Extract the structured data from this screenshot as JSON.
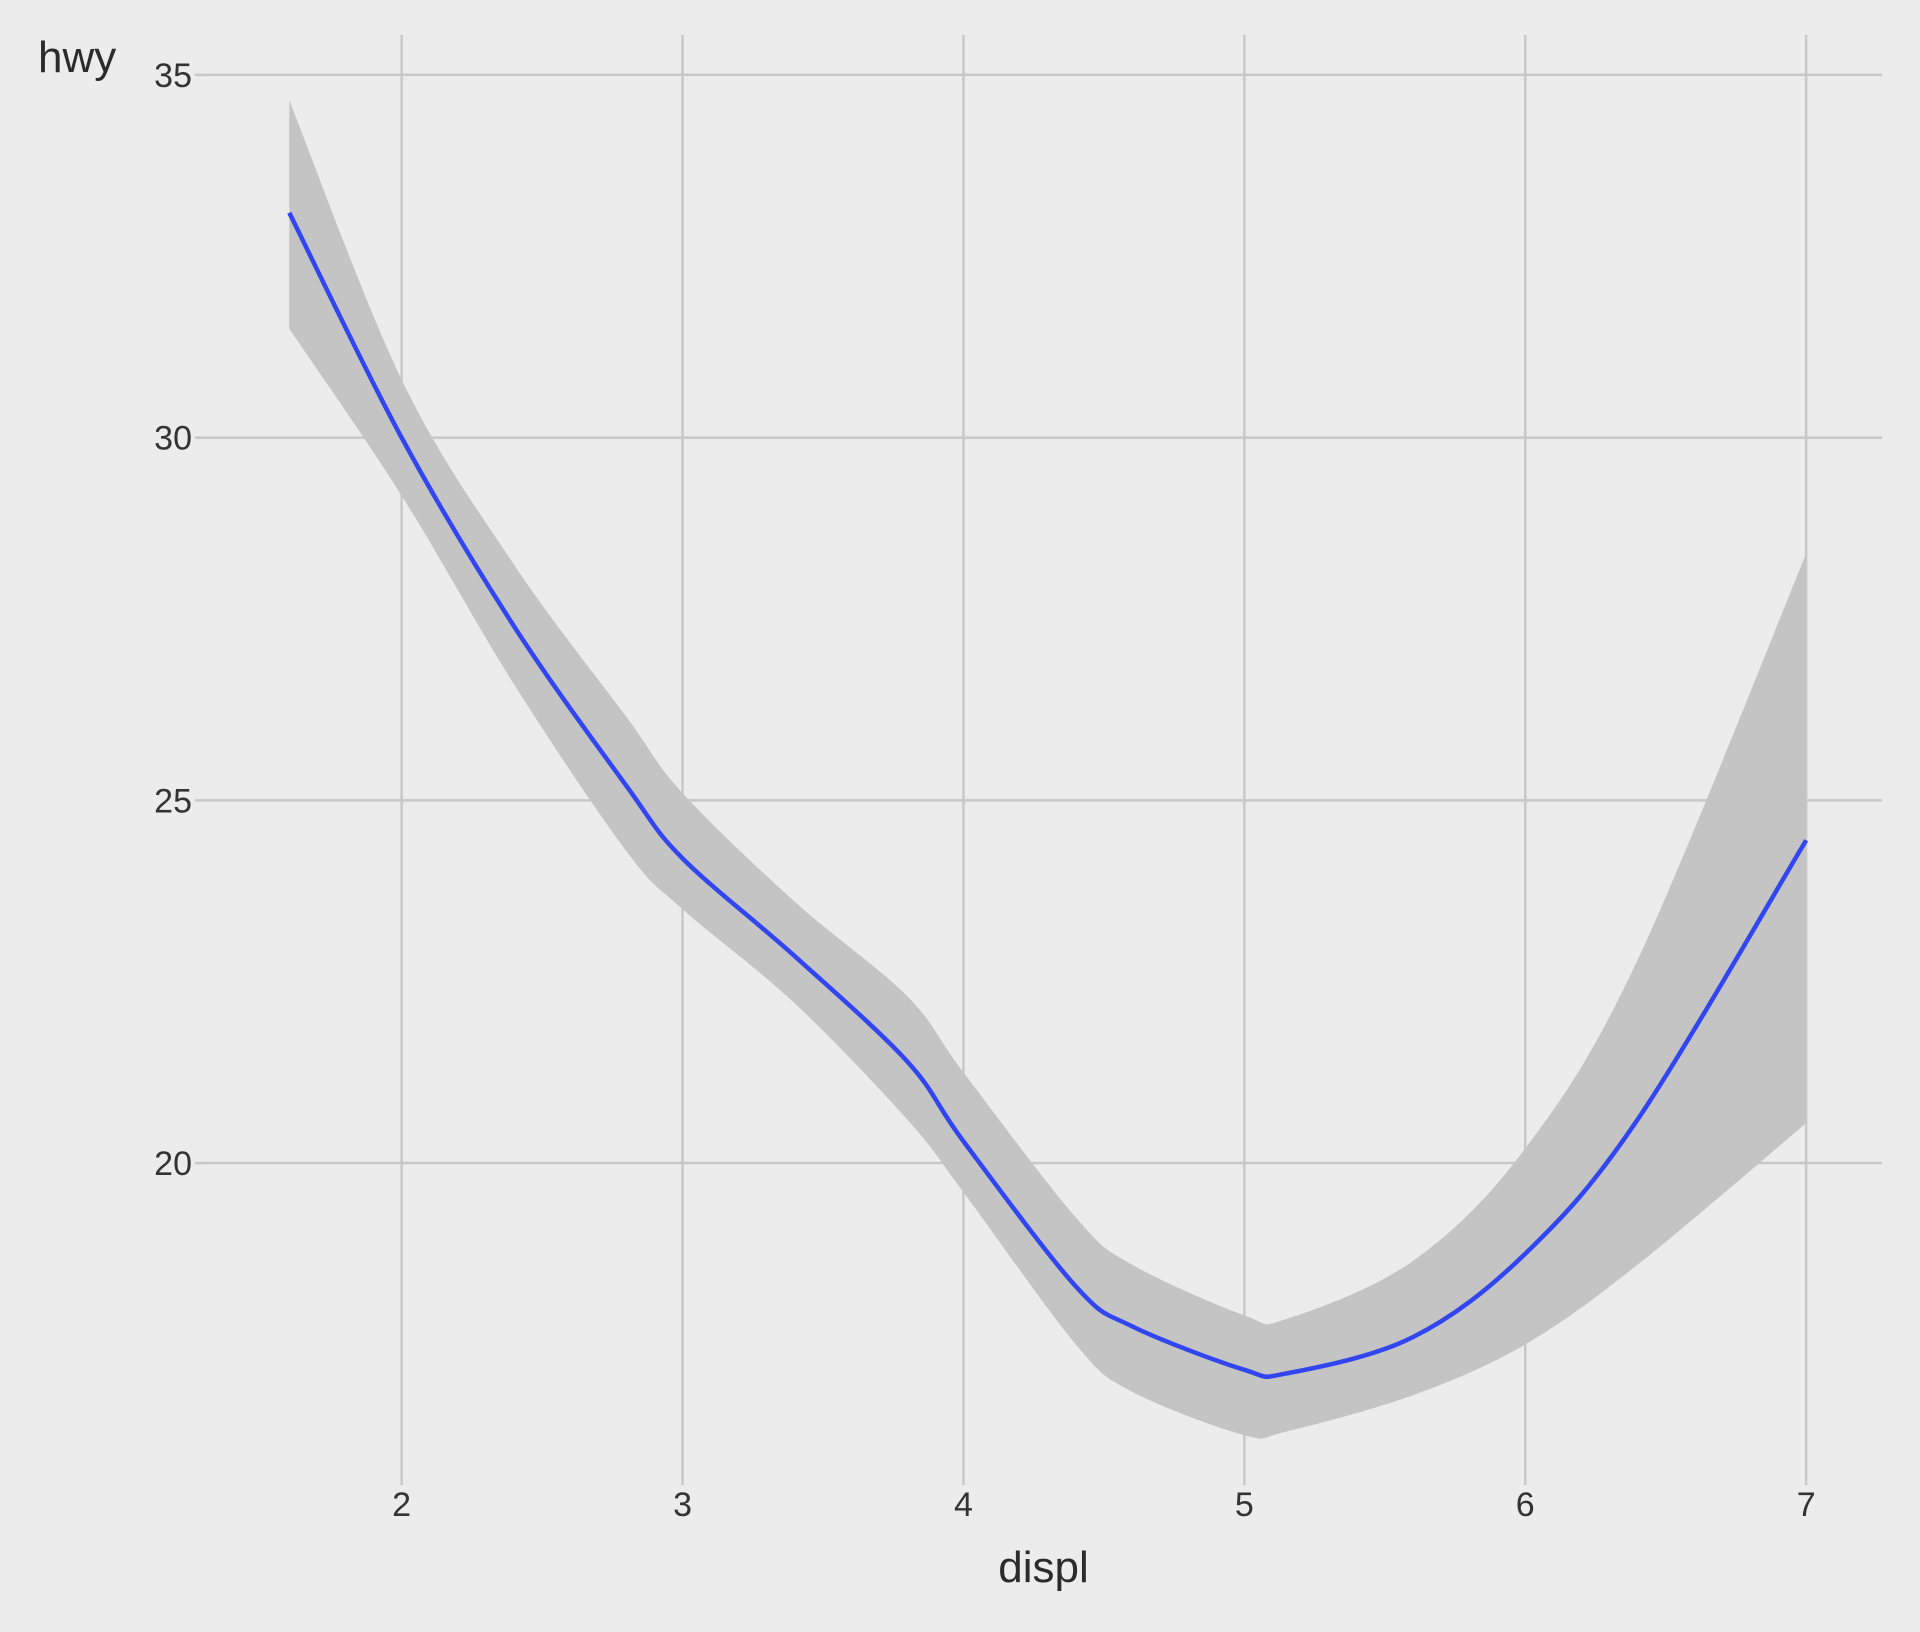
{
  "chart_data": {
    "type": "line",
    "title": "",
    "xlabel": "displ",
    "ylabel": "hwy",
    "xlim": [
      1.3,
      7.27
    ],
    "ylim": [
      15.7,
      35.55
    ],
    "x_ticks": [
      2,
      3,
      4,
      5,
      6,
      7
    ],
    "y_ticks": [
      20,
      25,
      30,
      35
    ],
    "grid": true,
    "legend": "none",
    "colors": {
      "line": "#3145f0",
      "band": "#c4c4c4",
      "background": "#ececec",
      "grid": "#c8c8c8",
      "text": "#333333"
    },
    "series": [
      {
        "kind": "smooth-fit",
        "x": [
          1.6,
          2.0,
          2.4,
          2.8,
          3.0,
          3.4,
          3.8,
          4.0,
          4.4,
          4.6,
          5.0,
          5.15,
          5.6,
          6.0,
          6.4,
          7.0
        ],
        "y": [
          33.1,
          30.0,
          27.4,
          25.2,
          24.2,
          22.85,
          21.4,
          20.3,
          18.3,
          17.75,
          17.15,
          17.1,
          17.6,
          18.75,
          20.6,
          24.45
        ],
        "lower": [
          31.5,
          29.2,
          26.6,
          24.3,
          23.5,
          22.2,
          20.6,
          19.6,
          17.5,
          16.85,
          16.25,
          16.3,
          16.8,
          17.5,
          18.6,
          20.55
        ],
        "upper": [
          34.65,
          30.8,
          28.25,
          26.15,
          25.1,
          23.6,
          22.3,
          21.25,
          19.25,
          18.6,
          17.9,
          17.85,
          18.65,
          20.2,
          22.8,
          28.4
        ]
      }
    ]
  }
}
